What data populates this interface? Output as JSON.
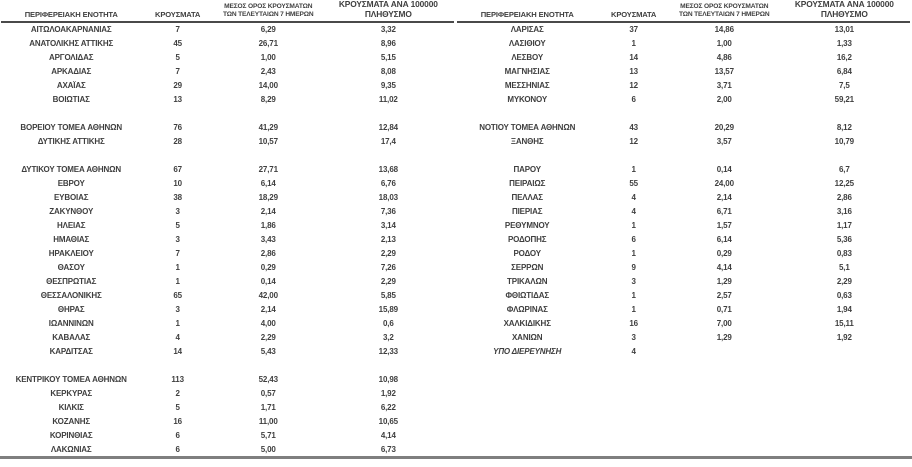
{
  "colors": {
    "text": "#3f3f3f",
    "header_rule": "#4a4a4a",
    "bottom_rule": "#7f7f7f",
    "background": "#ffffff"
  },
  "columns": [
    {
      "label": "ΠΕΡΙΦΕΡΕΙΑΚΗ ΕΝΟΤΗΤΑ"
    },
    {
      "label": "ΚΡΟΥΣΜΑΤΑ"
    },
    {
      "line1": "ΜΕΣΟΣ ΟΡΟΣ ΚΡΟΥΣΜΑΤΩΝ",
      "line2": "ΤΩΝ ΤΕΛΕΥΤΑΙΩΝ 7 ΗΜΕΡΩΝ"
    },
    {
      "line1": "ΚΡΟΥΣΜΑΤΑ ΑΝΑ 100000",
      "line2": "ΠΛΗΘΥΣΜΟ"
    }
  ],
  "left_table": {
    "rows": [
      {
        "region": "ΑΙΤΩΛΟΑΚΑΡΝΑΝΙΑΣ",
        "cases": "7",
        "avg7": "6,29",
        "per100k": "3,32"
      },
      {
        "region": "ΑΝΑΤΟΛΙΚΗΣ ΑΤΤΙΚΗΣ",
        "cases": "45",
        "avg7": "26,71",
        "per100k": "8,96"
      },
      {
        "region": "ΑΡΓΟΛΙΔΑΣ",
        "cases": "5",
        "avg7": "1,00",
        "per100k": "5,15"
      },
      {
        "region": "ΑΡΚΑΔΙΑΣ",
        "cases": "7",
        "avg7": "2,43",
        "per100k": "8,08"
      },
      {
        "region": "ΑΧΑΪΑΣ",
        "cases": "29",
        "avg7": "14,00",
        "per100k": "9,35"
      },
      {
        "region": "ΒΟΙΩΤΙΑΣ",
        "cases": "13",
        "avg7": "8,29",
        "per100k": "11,02"
      },
      {
        "blank": true
      },
      {
        "region": "ΒΟΡΕΙΟΥ ΤΟΜΕΑ ΑΘΗΝΩΝ",
        "cases": "76",
        "avg7": "41,29",
        "per100k": "12,84"
      },
      {
        "region": "ΔΥΤΙΚΗΣ ΑΤΤΙΚΗΣ",
        "cases": "28",
        "avg7": "10,57",
        "per100k": "17,4"
      },
      {
        "blank": true
      },
      {
        "region": "ΔΥΤΙΚΟΥ ΤΟΜΕΑ ΑΘΗΝΩΝ",
        "cases": "67",
        "avg7": "27,71",
        "per100k": "13,68"
      },
      {
        "region": "ΕΒΡΟΥ",
        "cases": "10",
        "avg7": "6,14",
        "per100k": "6,76"
      },
      {
        "region": "ΕΥΒΟΙΑΣ",
        "cases": "38",
        "avg7": "18,29",
        "per100k": "18,03"
      },
      {
        "region": "ΖΑΚΥΝΘΟΥ",
        "cases": "3",
        "avg7": "2,14",
        "per100k": "7,36"
      },
      {
        "region": "ΗΛΕΙΑΣ",
        "cases": "5",
        "avg7": "1,86",
        "per100k": "3,14"
      },
      {
        "region": "ΗΜΑΘΙΑΣ",
        "cases": "3",
        "avg7": "3,43",
        "per100k": "2,13"
      },
      {
        "region": "ΗΡΑΚΛΕΙΟΥ",
        "cases": "7",
        "avg7": "2,86",
        "per100k": "2,29"
      },
      {
        "region": "ΘΑΣΟΥ",
        "cases": "1",
        "avg7": "0,29",
        "per100k": "7,26"
      },
      {
        "region": "ΘΕΣΠΡΩΤΙΑΣ",
        "cases": "1",
        "avg7": "0,14",
        "per100k": "2,29"
      },
      {
        "region": "ΘΕΣΣΑΛΟΝΙΚΗΣ",
        "cases": "65",
        "avg7": "42,00",
        "per100k": "5,85"
      },
      {
        "region": "ΘΗΡΑΣ",
        "cases": "3",
        "avg7": "2,14",
        "per100k": "15,89"
      },
      {
        "region": "ΙΩΑΝΝΙΝΩΝ",
        "cases": "1",
        "avg7": "4,00",
        "per100k": "0,6"
      },
      {
        "region": "ΚΑΒΑΛΑΣ",
        "cases": "4",
        "avg7": "2,29",
        "per100k": "3,2"
      },
      {
        "region": "ΚΑΡΔΙΤΣΑΣ",
        "cases": "14",
        "avg7": "5,43",
        "per100k": "12,33"
      },
      {
        "blank": true
      },
      {
        "region": "ΚΕΝΤΡΙΚΟΥ ΤΟΜΕΑ ΑΘΗΝΩΝ",
        "cases": "113",
        "avg7": "52,43",
        "per100k": "10,98"
      },
      {
        "region": "ΚΕΡΚΥΡΑΣ",
        "cases": "2",
        "avg7": "0,57",
        "per100k": "1,92"
      },
      {
        "region": "ΚΙΛΚΙΣ",
        "cases": "5",
        "avg7": "1,71",
        "per100k": "6,22"
      },
      {
        "region": "ΚΟΖΑΝΗΣ",
        "cases": "16",
        "avg7": "11,00",
        "per100k": "10,65"
      },
      {
        "region": "ΚΟΡΙΝΘΙΑΣ",
        "cases": "6",
        "avg7": "5,71",
        "per100k": "4,14"
      },
      {
        "region": "ΛΑΚΩΝΙΑΣ",
        "cases": "6",
        "avg7": "5,00",
        "per100k": "6,73"
      }
    ]
  },
  "right_table": {
    "rows": [
      {
        "region": "ΛΑΡΙΣΑΣ",
        "cases": "37",
        "avg7": "14,86",
        "per100k": "13,01"
      },
      {
        "region": "ΛΑΣΙΘΙΟΥ",
        "cases": "1",
        "avg7": "1,00",
        "per100k": "1,33"
      },
      {
        "region": "ΛΕΣΒΟΥ",
        "cases": "14",
        "avg7": "4,86",
        "per100k": "16,2"
      },
      {
        "region": "ΜΑΓΝΗΣΙΑΣ",
        "cases": "13",
        "avg7": "13,57",
        "per100k": "6,84"
      },
      {
        "region": "ΜΕΣΣΗΝΙΑΣ",
        "cases": "12",
        "avg7": "3,71",
        "per100k": "7,5"
      },
      {
        "region": "ΜΥΚΟΝΟΥ",
        "cases": "6",
        "avg7": "2,00",
        "per100k": "59,21"
      },
      {
        "blank": true
      },
      {
        "region": "ΝΟΤΙΟΥ ΤΟΜΕΑ ΑΘΗΝΩΝ",
        "cases": "43",
        "avg7": "20,29",
        "per100k": "8,12"
      },
      {
        "region": "ΞΑΝΘΗΣ",
        "cases": "12",
        "avg7": "3,57",
        "per100k": "10,79"
      },
      {
        "blank": true
      },
      {
        "region": "ΠΑΡΟΥ",
        "cases": "1",
        "avg7": "0,14",
        "per100k": "6,7"
      },
      {
        "region": "ΠΕΙΡΑΙΩΣ",
        "cases": "55",
        "avg7": "24,00",
        "per100k": "12,25"
      },
      {
        "region": "ΠΕΛΛΑΣ",
        "cases": "4",
        "avg7": "2,14",
        "per100k": "2,86"
      },
      {
        "region": "ΠΙΕΡΙΑΣ",
        "cases": "4",
        "avg7": "6,71",
        "per100k": "3,16"
      },
      {
        "region": "ΡΕΘΥΜΝΟΥ",
        "cases": "1",
        "avg7": "1,57",
        "per100k": "1,17"
      },
      {
        "region": "ΡΟΔΟΠΗΣ",
        "cases": "6",
        "avg7": "6,14",
        "per100k": "5,36"
      },
      {
        "region": "ΡΟΔΟΥ",
        "cases": "1",
        "avg7": "0,29",
        "per100k": "0,83"
      },
      {
        "region": "ΣΕΡΡΩΝ",
        "cases": "9",
        "avg7": "4,14",
        "per100k": "5,1"
      },
      {
        "region": "ΤΡΙΚΑΛΩΝ",
        "cases": "3",
        "avg7": "1,29",
        "per100k": "2,29"
      },
      {
        "region": "ΦΘΙΩΤΙΔΑΣ",
        "cases": "1",
        "avg7": "2,57",
        "per100k": "0,63"
      },
      {
        "region": "ΦΛΩΡΙΝΑΣ",
        "cases": "1",
        "avg7": "0,71",
        "per100k": "1,94"
      },
      {
        "region": "ΧΑΛΚΙΔΙΚΗΣ",
        "cases": "16",
        "avg7": "7,00",
        "per100k": "15,11"
      },
      {
        "region": "ΧΑΝΙΩΝ",
        "cases": "3",
        "avg7": "1,29",
        "per100k": "1,92"
      },
      {
        "region": "ΥΠΟ ΔΙΕΡΕΥΝΗΣΗ",
        "cases": "4",
        "avg7": "",
        "per100k": "",
        "italic": true
      }
    ]
  }
}
